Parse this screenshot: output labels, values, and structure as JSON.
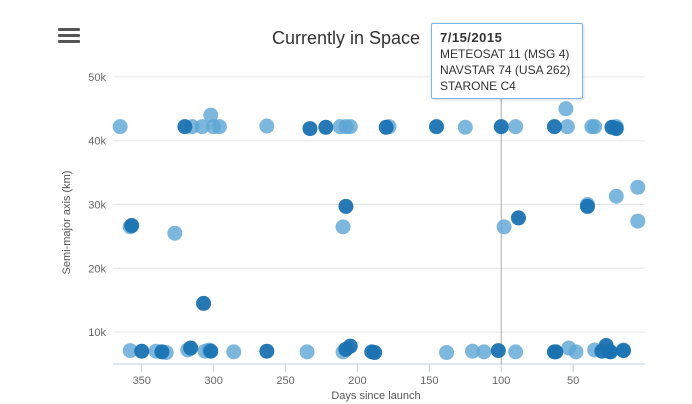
{
  "chart_data": {
    "type": "scatter",
    "title": "Currently in Space",
    "xlabel": "Days since launch",
    "ylabel": "Semi-major axis (km)",
    "x_reversed": true,
    "xlim": [
      0,
      370
    ],
    "ylim": [
      5000,
      55000
    ],
    "x_ticks": [
      350,
      300,
      250,
      200,
      150,
      100,
      50
    ],
    "y_ticks": [
      10000,
      20000,
      30000,
      40000,
      50000
    ],
    "y_tick_labels": [
      "10k",
      "20k",
      "30k",
      "40k",
      "50k"
    ],
    "colors": {
      "light": "#5da5d5",
      "dark": "#1a72b1",
      "grid": "#e6e6e6",
      "crosshair": "#aaaaaa"
    },
    "series": [
      {
        "points": [
          [
            365,
            42200
          ],
          [
            315,
            42200
          ],
          [
            308,
            42200
          ],
          [
            302,
            44000
          ],
          [
            300,
            42200
          ],
          [
            296,
            42200
          ],
          [
            263,
            42300
          ],
          [
            212,
            42200
          ],
          [
            208,
            42200
          ],
          [
            205,
            42200
          ],
          [
            178,
            42200
          ],
          [
            125,
            42100
          ],
          [
            90,
            42200
          ],
          [
            55,
            45000
          ],
          [
            54,
            42200
          ],
          [
            37,
            42200
          ],
          [
            35,
            42200
          ],
          [
            20,
            42200
          ],
          [
            358,
            26500
          ],
          [
            327,
            25500
          ],
          [
            210,
            26500
          ],
          [
            98,
            26500
          ],
          [
            40,
            30000
          ],
          [
            20,
            31300
          ],
          [
            5,
            32700
          ],
          [
            5,
            27400
          ],
          [
            358,
            7100
          ],
          [
            340,
            7000
          ],
          [
            333,
            6800
          ],
          [
            318,
            7200
          ],
          [
            306,
            7000
          ],
          [
            303,
            7200
          ],
          [
            286,
            6900
          ],
          [
            235,
            6900
          ],
          [
            210,
            6900
          ],
          [
            138,
            6800
          ],
          [
            120,
            7000
          ],
          [
            112,
            6900
          ],
          [
            90,
            6900
          ],
          [
            53,
            7500
          ],
          [
            48,
            6900
          ],
          [
            35,
            7200
          ],
          [
            25,
            7000
          ],
          [
            15,
            7200
          ]
        ]
      },
      {
        "points": [
          [
            320,
            42200
          ],
          [
            233,
            41900
          ],
          [
            222,
            42100
          ],
          [
            180,
            42100
          ],
          [
            145,
            42200
          ],
          [
            100,
            42200
          ],
          [
            63,
            42200
          ],
          [
            23,
            42100
          ],
          [
            20,
            41900
          ],
          [
            357,
            26700
          ],
          [
            208,
            29700
          ],
          [
            88,
            27900
          ],
          [
            40,
            29700
          ],
          [
            307,
            14500
          ],
          [
            350,
            7000
          ],
          [
            336,
            6900
          ],
          [
            316,
            7500
          ],
          [
            302,
            7000
          ],
          [
            263,
            7000
          ],
          [
            208,
            7300
          ],
          [
            205,
            7800
          ],
          [
            190,
            6900
          ],
          [
            188,
            6800
          ],
          [
            102,
            7100
          ],
          [
            63,
            6900
          ],
          [
            62,
            6900
          ],
          [
            30,
            7000
          ],
          [
            27,
            7900
          ],
          [
            25,
            7000
          ],
          [
            24,
            6900
          ],
          [
            15,
            7100
          ]
        ]
      }
    ],
    "highlight_x": 100,
    "tooltip": {
      "date": "7/15/2015",
      "items": [
        "METEOSAT 11 (MSG 4)",
        "NAVSTAR 74 (USA 262)",
        "STARONE C4"
      ]
    }
  },
  "menu": {
    "icon": "hamburger-menu-icon"
  }
}
